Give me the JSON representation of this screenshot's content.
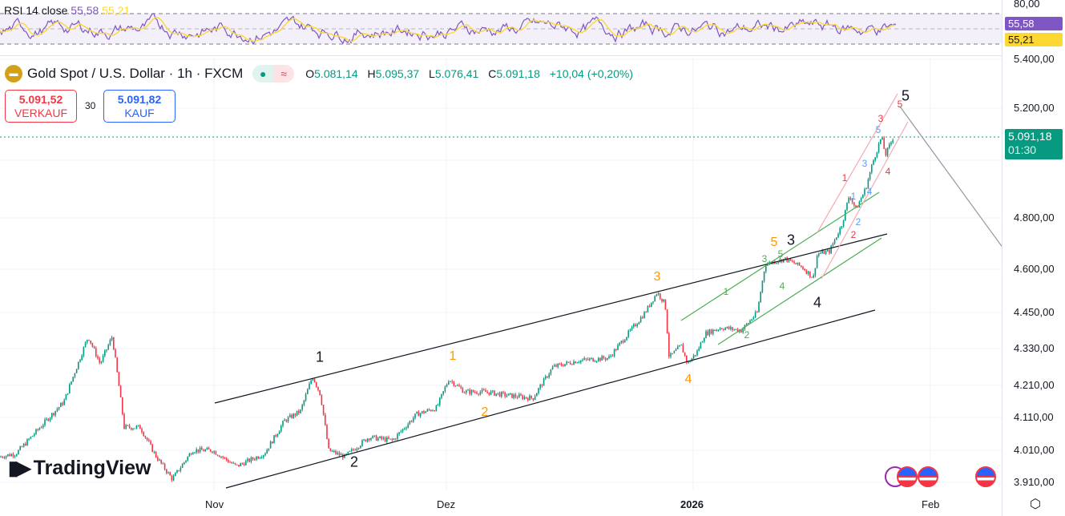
{
  "rsi": {
    "label": "RSI 14 close",
    "value": "55,58",
    "ma_value": "55,21",
    "scale_top": "80,00",
    "colors": {
      "rsi": "#7e57c2",
      "ma": "#fdd835"
    }
  },
  "header": {
    "symbol": "Gold Spot / U.S. Dollar · 1h · FXCM",
    "o_label": "O",
    "o": "5.081,14",
    "h_label": "H",
    "h": "5.095,37",
    "l_label": "L",
    "l": "5.076,41",
    "c_label": "C",
    "c": "5.091,18",
    "change": "+10,04 (+0,20%)",
    "status_icon": "market-open-dot",
    "delay_icon": "approx-icon"
  },
  "trade": {
    "sell_price": "5.091,52",
    "sell_label": "VERKAUF",
    "spread": "30",
    "buy_price": "5.091,82",
    "buy_label": "KAUF"
  },
  "price_axis": {
    "ticks": [
      "5.400,00",
      "5.200,00",
      "4.800,00",
      "4.600,00",
      "4.450,00",
      "4.330,00",
      "4.210,00",
      "4.110,00",
      "4.010,00",
      "3.910,00"
    ],
    "last_price": "5.091,18",
    "countdown": "01:30",
    "last_color": "#089981"
  },
  "time_axis": {
    "labels": [
      "Nov",
      "Dez",
      "2026",
      "Feb"
    ]
  },
  "brand": {
    "name": "TradingView"
  },
  "wave_labels": {
    "black": [
      "1",
      "2",
      "3",
      "4",
      "5"
    ],
    "orange": [
      "1",
      "2",
      "3",
      "4",
      "5"
    ],
    "green": [
      "1",
      "2",
      "3",
      "4",
      "5"
    ],
    "red": [
      "1",
      "2",
      "3",
      "4",
      "5"
    ],
    "blue": [
      "1",
      "2",
      "3",
      "4",
      "5"
    ]
  },
  "colors": {
    "up": "#089981",
    "down": "#f23645",
    "black": "#131722",
    "orange": "#ff9800",
    "green": "#4caf50",
    "red": "#f23645",
    "blue": "#5b9cf6"
  },
  "chart_data": {
    "type": "candlestick",
    "symbol": "XAUUSD",
    "interval": "1h",
    "price_path": [
      [
        0,
        3990
      ],
      [
        20,
        4000
      ],
      [
        50,
        4080
      ],
      [
        80,
        4160
      ],
      [
        110,
        4370
      ],
      [
        125,
        4280
      ],
      [
        140,
        4370
      ],
      [
        155,
        4080
      ],
      [
        175,
        4080
      ],
      [
        195,
        3990
      ],
      [
        215,
        3920
      ],
      [
        240,
        4010
      ],
      [
        265,
        4010
      ],
      [
        295,
        3960
      ],
      [
        330,
        4000
      ],
      [
        355,
        4100
      ],
      [
        375,
        4130
      ],
      [
        390,
        4240
      ],
      [
        400,
        4180
      ],
      [
        410,
        4010
      ],
      [
        430,
        3990
      ],
      [
        460,
        4050
      ],
      [
        490,
        4040
      ],
      [
        520,
        4120
      ],
      [
        545,
        4140
      ],
      [
        560,
        4230
      ],
      [
        580,
        4190
      ],
      [
        605,
        4190
      ],
      [
        630,
        4180
      ],
      [
        665,
        4170
      ],
      [
        690,
        4270
      ],
      [
        720,
        4290
      ],
      [
        760,
        4300
      ],
      [
        790,
        4400
      ],
      [
        805,
        4450
      ],
      [
        820,
        4520
      ],
      [
        830,
        4480
      ],
      [
        835,
        4300
      ],
      [
        850,
        4340
      ],
      [
        858,
        4280
      ],
      [
        870,
        4320
      ],
      [
        880,
        4380
      ],
      [
        900,
        4400
      ],
      [
        925,
        4390
      ],
      [
        945,
        4450
      ],
      [
        955,
        4620
      ],
      [
        980,
        4640
      ],
      [
        1000,
        4610
      ],
      [
        1015,
        4570
      ],
      [
        1020,
        4660
      ],
      [
        1035,
        4670
      ],
      [
        1050,
        4770
      ],
      [
        1060,
        4880
      ],
      [
        1068,
        4830
      ],
      [
        1080,
        4900
      ],
      [
        1090,
        5000
      ],
      [
        1100,
        5090
      ],
      [
        1105,
        5020
      ],
      [
        1115,
        5091
      ]
    ]
  }
}
